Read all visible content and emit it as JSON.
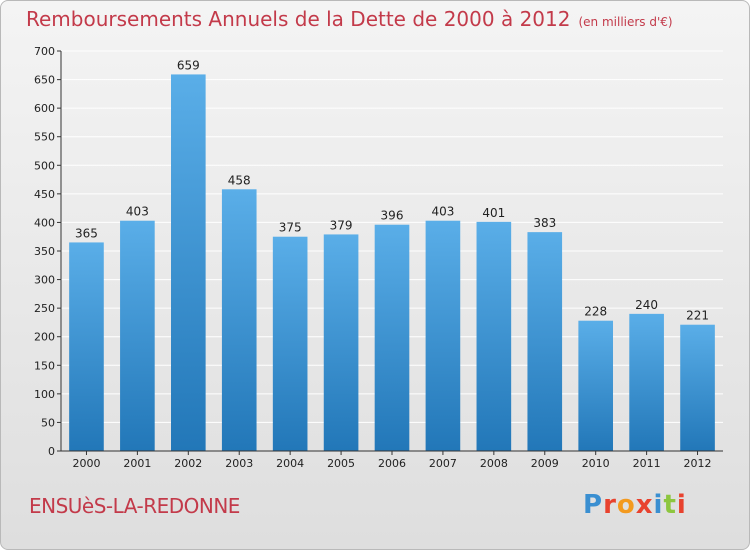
{
  "title": "Remboursements Annuels de la Dette de 2000 à 2012",
  "unit_note": "(en milliers d'€)",
  "city": "ENSUèS-LA-REDONNE",
  "logo": {
    "text": "Proxiti",
    "letter_colors": [
      "#3a8fd1",
      "#e8422e",
      "#f39a1f",
      "#e8422e",
      "#3a8fd1",
      "#8dc63f",
      "#e8422e"
    ]
  },
  "colors": {
    "bar_top": "#5aaee8",
    "bar_bottom": "#2277b8",
    "title": "#c33a4a",
    "grid": "#ffffff"
  },
  "chart_data": {
    "type": "bar",
    "title": "Remboursements Annuels de la Dette de 2000 à 2012",
    "categories": [
      "2000",
      "2001",
      "2002",
      "2003",
      "2004",
      "2005",
      "2006",
      "2007",
      "2008",
      "2009",
      "2010",
      "2011",
      "2012"
    ],
    "values": [
      365,
      403,
      659,
      458,
      375,
      379,
      396,
      403,
      401,
      383,
      228,
      240,
      221
    ],
    "ylim": [
      0,
      700
    ],
    "yticks": [
      0,
      50,
      100,
      150,
      200,
      250,
      300,
      350,
      400,
      450,
      500,
      550,
      600,
      650,
      700
    ],
    "grid": true,
    "xlabel": "",
    "ylabel": ""
  }
}
